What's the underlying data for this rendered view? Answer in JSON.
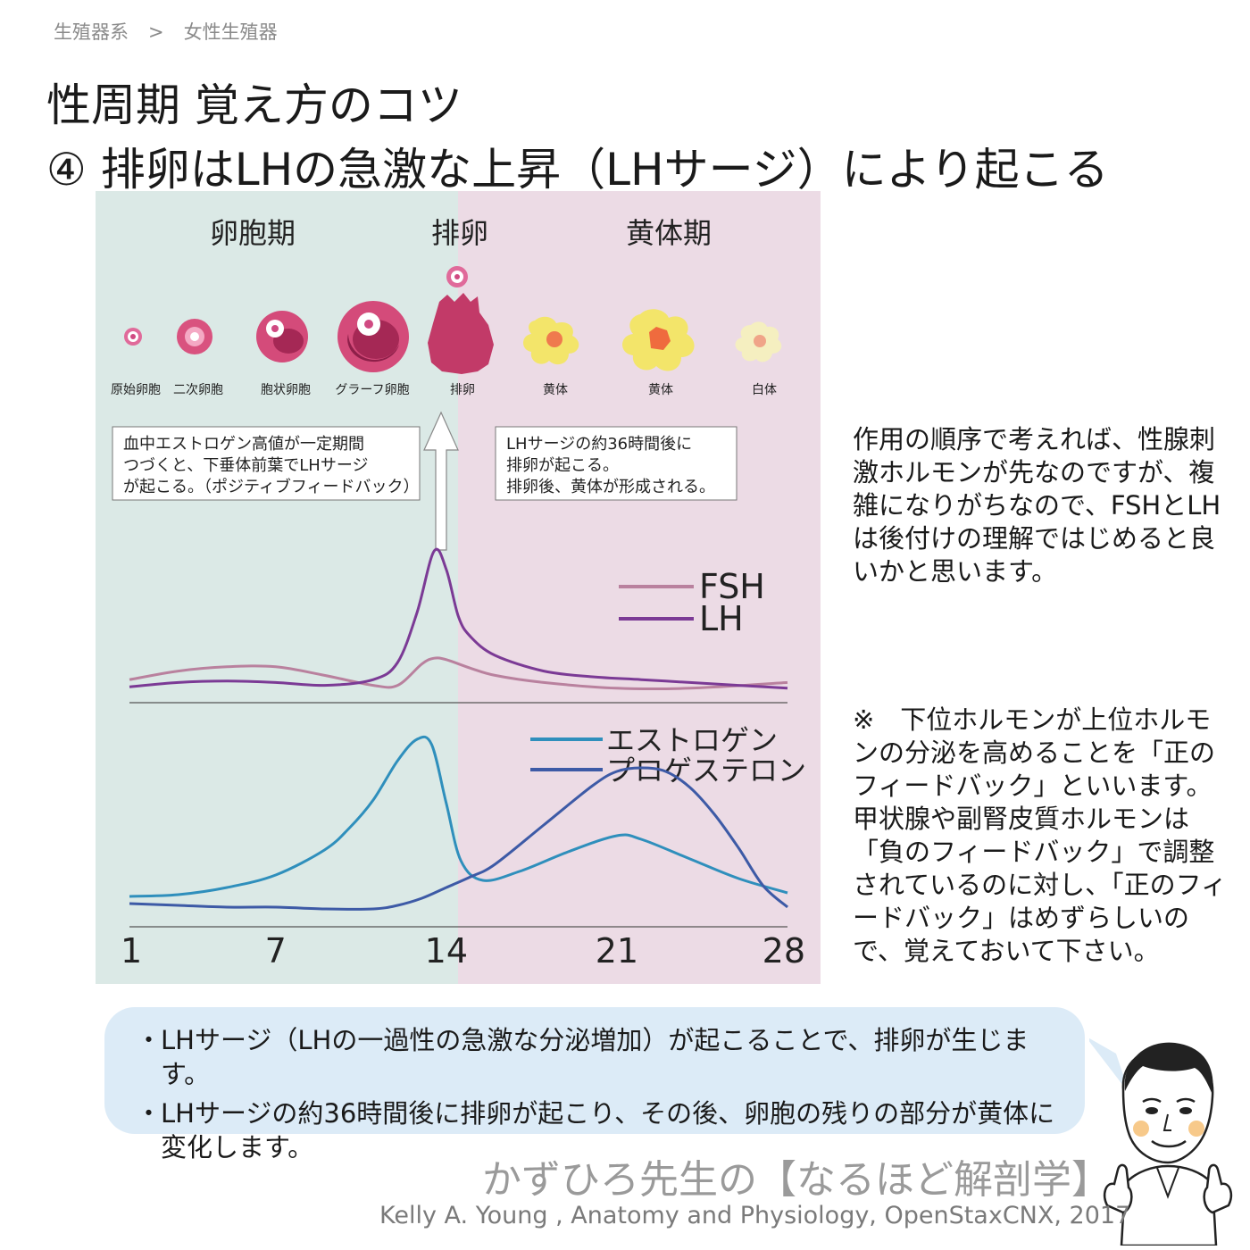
{
  "breadcrumb": {
    "parent": "生殖器系",
    "separator": ">",
    "current": "女性生殖器"
  },
  "title": {
    "line1": "性周期 覚え方のコツ",
    "line2": "④ 排卵はLHの急激な上昇（LHサージ）により起こる"
  },
  "colors": {
    "follicular_bg": "#dbe9e6",
    "luteal_bg": "#ecdbe5",
    "fsh": "#b9819e",
    "lh": "#7b3a95",
    "estrogen": "#2f8fbc",
    "progesterone": "#3d5aa6",
    "summary_bg": "#dcebf7"
  },
  "chart_data": [
    {
      "type": "line",
      "title": "",
      "phases": [
        {
          "label": "卵胞期",
          "x_range": [
            1,
            14
          ]
        },
        {
          "label": "排卵",
          "x": 14
        },
        {
          "label": "黄体期",
          "x_range": [
            14,
            28
          ]
        }
      ],
      "follicle_stages": [
        {
          "label": "原始卵胞",
          "day": 1
        },
        {
          "label": "二次卵胞",
          "day": 3
        },
        {
          "label": "胞状卵胞",
          "day": 6
        },
        {
          "label": "グラーフ卵胞",
          "day": 10
        },
        {
          "label": "排卵",
          "day": 14
        },
        {
          "label": "黄体",
          "day": 17
        },
        {
          "label": "黄体",
          "day": 22
        },
        {
          "label": "白体",
          "day": 26
        }
      ],
      "annotations": [
        {
          "x": 7,
          "lines": [
            "血中エストロゲン高値が一定期間",
            "つづくと、下垂体前葉でLHサージ",
            "が起こる。（ポジティブフィードバック）"
          ]
        },
        {
          "x": 21,
          "lines": [
            "LHサージの約36時間後に",
            "排卵が起こる。",
            "排卵後、黄体が形成される。"
          ]
        }
      ],
      "series": [
        {
          "name": "FSH",
          "x": [
            1,
            3,
            5,
            7,
            9,
            11,
            12,
            13,
            13.5,
            14,
            15,
            16,
            18,
            21,
            24,
            28
          ],
          "y": [
            0.08,
            0.14,
            0.17,
            0.17,
            0.11,
            0.04,
            0.04,
            0.19,
            0.23,
            0.22,
            0.16,
            0.11,
            0.06,
            0.02,
            0.02,
            0.06
          ]
        },
        {
          "name": "LH",
          "x": [
            1,
            3,
            5,
            7,
            9,
            11,
            12,
            12.8,
            13.5,
            14,
            14.5,
            15,
            16,
            18,
            20,
            22,
            24,
            26,
            28
          ],
          "y": [
            0.03,
            0.06,
            0.07,
            0.06,
            0.04,
            0.08,
            0.2,
            0.55,
            0.98,
            0.85,
            0.52,
            0.38,
            0.25,
            0.14,
            0.1,
            0.08,
            0.06,
            0.04,
            0.02
          ]
        }
      ]
    },
    {
      "type": "line",
      "title": "",
      "x_ticks": [
        1,
        7,
        14,
        21,
        28
      ],
      "xlim": [
        1,
        28
      ],
      "series": [
        {
          "name": "エストロゲン",
          "x": [
            1,
            3,
            5,
            7,
            9,
            10,
            11,
            12,
            12.8,
            13.4,
            14,
            14.6,
            15.5,
            17,
            19,
            21,
            22,
            24,
            26,
            28
          ],
          "y": [
            0.1,
            0.11,
            0.15,
            0.22,
            0.36,
            0.48,
            0.64,
            0.86,
            0.98,
            0.95,
            0.62,
            0.3,
            0.19,
            0.24,
            0.35,
            0.44,
            0.42,
            0.31,
            0.2,
            0.12
          ]
        },
        {
          "name": "プロゲステロン",
          "x": [
            1,
            3,
            5,
            7,
            9,
            11,
            12,
            13,
            14,
            15,
            16,
            18,
            20,
            21,
            22,
            23,
            24,
            25,
            26,
            27,
            28
          ],
          "y": [
            0.06,
            0.05,
            0.04,
            0.04,
            0.03,
            0.03,
            0.05,
            0.09,
            0.15,
            0.21,
            0.28,
            0.5,
            0.72,
            0.8,
            0.82,
            0.8,
            0.71,
            0.56,
            0.37,
            0.16,
            0.04
          ]
        }
      ]
    }
  ],
  "side_note1": "作用の順序で考えれば、性腺刺激ホルモンが先なのですが、複雑になりがちなので、FSHとLHは後付けの理解ではじめると良いかと思います。",
  "side_note2": "※　下位ホルモンが上位ホルモンの分泌を高めることを「正のフィードバック」といいます。甲状腺や副腎皮質ホルモンは「負のフィードバック」で調整されているのに対し、「正のフィードバック」はめずらしいので、覚えておいて下さい。",
  "summary": [
    "LHサージ（LHの一過性の急激な分泌増加）が起こることで、排卵が生じます。",
    "LHサージの約36時間後に排卵が起こり、その後、卵胞の残りの部分が黄体に変化します。"
  ],
  "brand": "かずひろ先生の【なるほど解剖学】",
  "credit": "Kelly A. Young , Anatomy and Physiology, OpenStaxCNX, 2017",
  "icons": {
    "doctor": "doctor-illustration-icon",
    "follicle": "follicle-icon",
    "corpus_luteum": "corpus-luteum-icon"
  }
}
